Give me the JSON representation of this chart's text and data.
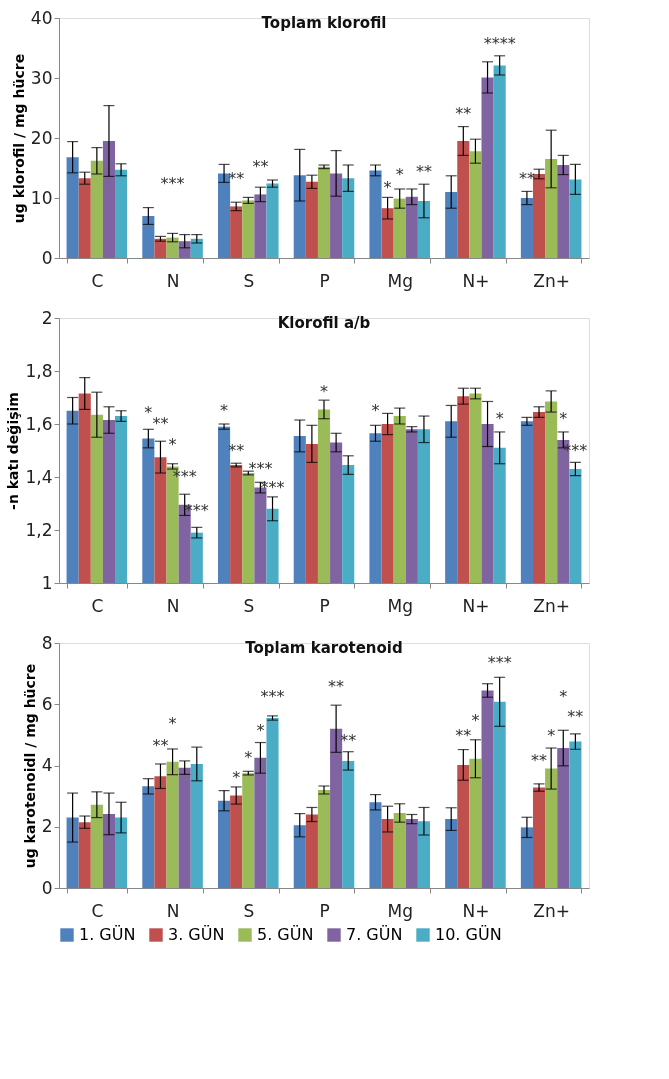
{
  "chart_data": [
    {
      "type": "bar",
      "title": "Toplam klorofil",
      "ylabel": "ug klorofil / mg hücre",
      "categories": [
        "C",
        "N",
        "S",
        "P",
        "Mg",
        "N+",
        "Zn+"
      ],
      "ylim": [
        0,
        40
      ],
      "yticks": [
        0,
        10,
        20,
        30,
        40
      ],
      "grid": false,
      "series": [
        {
          "color": "#4f81bd",
          "values": [
            16.8,
            7.0,
            14.1,
            13.8,
            14.6,
            11.0,
            10.0
          ],
          "errors": [
            2.6,
            1.4,
            1.5,
            4.3,
            0.9,
            2.7,
            1.1
          ]
        },
        {
          "color": "#c0504d",
          "values": [
            13.3,
            3.2,
            8.6,
            12.7,
            8.3,
            19.5,
            14.0
          ],
          "errors": [
            1.0,
            0.4,
            0.7,
            1.1,
            1.8,
            2.4,
            0.8
          ]
        },
        {
          "color": "#9bbb59",
          "values": [
            16.2,
            3.4,
            9.6,
            15.2,
            9.9,
            17.8,
            16.5
          ],
          "errors": [
            2.2,
            0.7,
            0.5,
            0.3,
            1.6,
            2.0,
            4.8
          ]
        },
        {
          "color": "#8064a2",
          "values": [
            19.5,
            2.8,
            10.6,
            14.1,
            10.2,
            30.1,
            15.5
          ],
          "errors": [
            5.9,
            1.1,
            1.2,
            3.8,
            1.3,
            2.6,
            1.6
          ]
        },
        {
          "color": "#4bacc6",
          "values": [
            14.7,
            3.2,
            12.4,
            13.3,
            9.5,
            32.1,
            13.1
          ],
          "errors": [
            1.0,
            0.7,
            0.6,
            2.2,
            2.8,
            1.6,
            2.5
          ]
        }
      ],
      "annotations": [
        "***",
        "**",
        "**",
        "*",
        "*",
        "**",
        "**",
        "****",
        "**"
      ]
    },
    {
      "type": "bar",
      "title": "Klorofil a/b",
      "ylabel": "-n katı değişim",
      "categories": [
        "C",
        "N",
        "S",
        "P",
        "Mg",
        "N+",
        "Zn+"
      ],
      "ylim": [
        1,
        2
      ],
      "yticks": [
        1,
        {
          "value": 1.2,
          "label": "1,2"
        },
        {
          "value": 1.4,
          "label": "1,4"
        },
        {
          "value": 1.6,
          "label": "1,6"
        },
        {
          "value": 1.8,
          "label": "1,8"
        },
        2
      ],
      "grid": false,
      "series": [
        {
          "color": "#4f81bd",
          "values": [
            1.65,
            1.545,
            1.59,
            1.555,
            1.565,
            1.61,
            1.61
          ],
          "errors": [
            0.05,
            0.035,
            0.01,
            0.06,
            0.03,
            0.06,
            0.015
          ]
        },
        {
          "color": "#c0504d",
          "values": [
            1.715,
            1.475,
            1.445,
            1.525,
            1.6,
            1.705,
            1.645
          ],
          "errors": [
            0.06,
            0.06,
            0.007,
            0.07,
            0.04,
            0.03,
            0.02
          ]
        },
        {
          "color": "#9bbb59",
          "values": [
            1.635,
            1.44,
            1.415,
            1.655,
            1.63,
            1.715,
            1.685
          ],
          "errors": [
            0.085,
            0.01,
            0.007,
            0.035,
            0.03,
            0.02,
            0.04
          ]
        },
        {
          "color": "#8064a2",
          "values": [
            1.615,
            1.295,
            1.36,
            1.53,
            1.58,
            1.6,
            1.54
          ],
          "errors": [
            0.05,
            0.04,
            0.02,
            0.035,
            0.01,
            0.085,
            0.03
          ]
        },
        {
          "color": "#4bacc6",
          "values": [
            1.63,
            1.19,
            1.28,
            1.445,
            1.58,
            1.51,
            1.43
          ],
          "errors": [
            0.02,
            0.02,
            0.045,
            0.035,
            0.05,
            0.06,
            0.025
          ]
        }
      ],
      "annotations": [
        "*",
        "**",
        "*",
        "***",
        "***",
        "*",
        "**",
        "***",
        "***",
        "*",
        "*",
        "*",
        "*",
        "***"
      ]
    },
    {
      "type": "bar",
      "title": "Toplam karotenoid",
      "ylabel": "ug karotenoidl / mg hücre",
      "categories": [
        "C",
        "N",
        "S",
        "P",
        "Mg",
        "N+",
        "Zn+"
      ],
      "ylim": [
        0,
        8
      ],
      "yticks": [
        0,
        2,
        4,
        6,
        8
      ],
      "grid": false,
      "legend": "bottom",
      "series": [
        {
          "name": "1. GÜN",
          "color": "#4f81bd",
          "values": [
            2.3,
            3.32,
            2.85,
            2.05,
            2.8,
            2.25,
            1.98
          ],
          "errors": [
            0.8,
            0.25,
            0.33,
            0.38,
            0.25,
            0.37,
            0.33
          ]
        },
        {
          "name": "3. GÜN",
          "color": "#c0504d",
          "values": [
            2.15,
            3.65,
            3.02,
            2.4,
            2.25,
            4.02,
            3.28
          ],
          "errors": [
            0.2,
            0.4,
            0.28,
            0.23,
            0.42,
            0.5,
            0.12
          ]
        },
        {
          "name": "5. GÜN",
          "color": "#9bbb59",
          "values": [
            2.72,
            4.12,
            3.75,
            3.2,
            2.45,
            4.22,
            3.9
          ],
          "errors": [
            0.42,
            0.42,
            0.06,
            0.13,
            0.3,
            0.62,
            0.67
          ]
        },
        {
          "name": "7. GÜN",
          "color": "#8064a2",
          "values": [
            2.42,
            3.93,
            4.25,
            5.2,
            2.25,
            6.45,
            4.57
          ],
          "errors": [
            0.68,
            0.22,
            0.5,
            0.77,
            0.15,
            0.22,
            0.58
          ]
        },
        {
          "name": "10. GÜN",
          "color": "#4bacc6",
          "values": [
            2.3,
            4.05,
            5.55,
            4.15,
            2.18,
            6.08,
            4.78
          ],
          "errors": [
            0.5,
            0.55,
            0.07,
            0.3,
            0.45,
            0.8,
            0.25
          ]
        }
      ],
      "annotations": [
        "**",
        "*",
        "*",
        "*",
        "*",
        "***",
        "**",
        "**",
        "**",
        "*",
        "***",
        "**",
        "*",
        "*",
        "**"
      ]
    }
  ]
}
